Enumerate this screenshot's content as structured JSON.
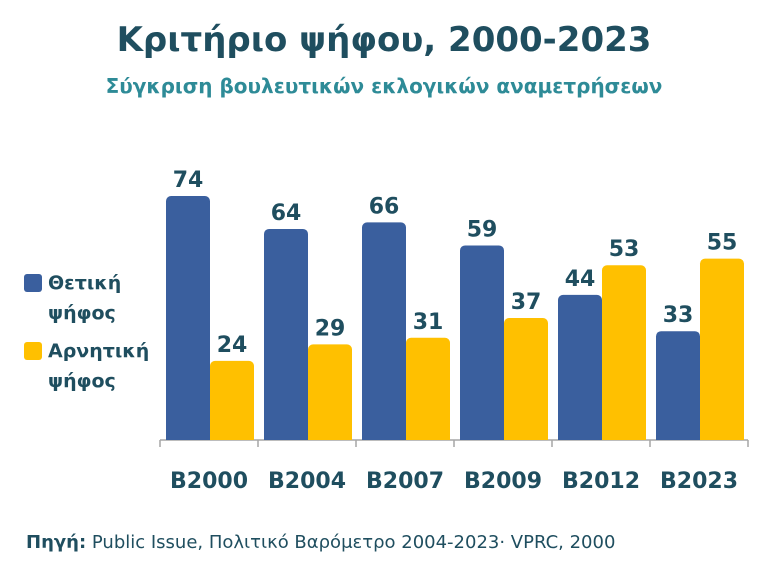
{
  "title": "Κριτήριο ψήφου, 2000-2023",
  "subtitle": "Σύγκριση βουλευτικών εκλογικών αναμετρήσεων",
  "source": {
    "label": "Πηγή:",
    "text": " Public Issue, Πολιτικό Βαρόμετρο 2004-2023· VPRC, 2000"
  },
  "chart_data": {
    "type": "bar",
    "categories": [
      "B2000",
      "B2004",
      "B2007",
      "B2009",
      "B2012",
      "B2023"
    ],
    "series": [
      {
        "name": "Θετική ψήφος",
        "color": "#3a5f9e",
        "values": [
          74,
          64,
          66,
          59,
          44,
          33
        ]
      },
      {
        "name": "Αρνητική ψήφος",
        "color": "#ffc000",
        "values": [
          24,
          29,
          31,
          37,
          53,
          55
        ]
      }
    ],
    "ylim": [
      0,
      80
    ],
    "grid": false,
    "legend": "left"
  }
}
